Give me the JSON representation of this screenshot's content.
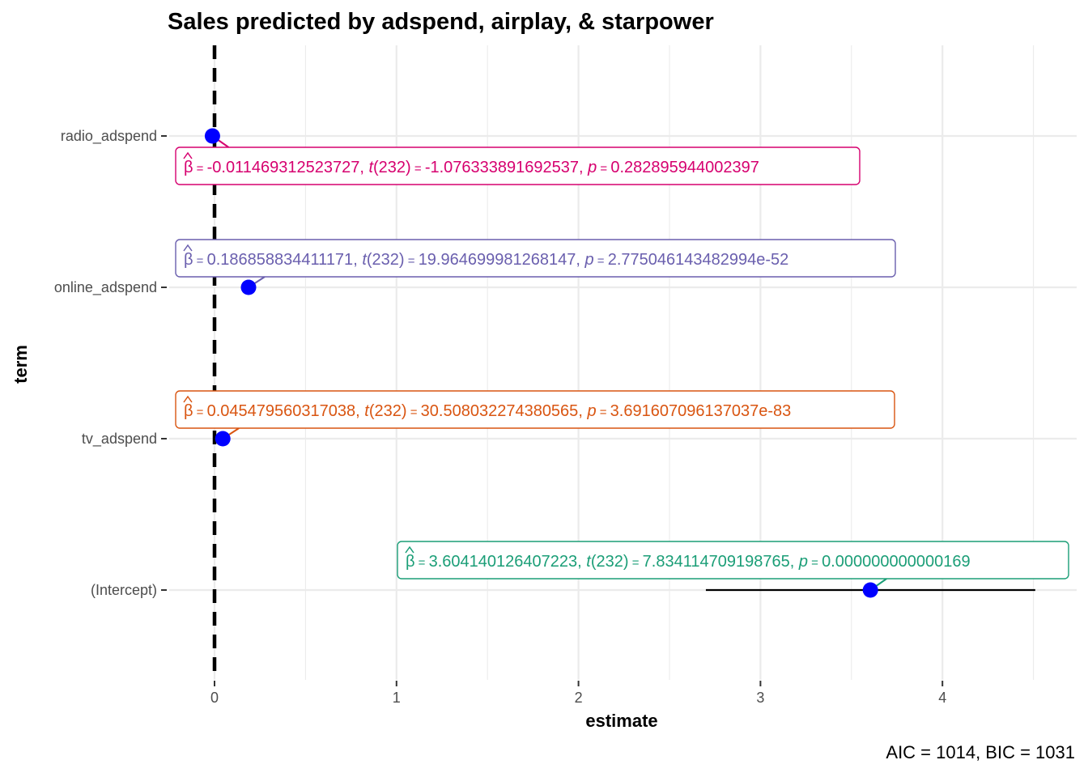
{
  "chart_data": {
    "type": "scatter",
    "title": "Sales predicted by adspend, airplay, & starpower",
    "xlabel": "estimate",
    "ylabel": "term",
    "xlim": [
      -0.2,
      4.76
    ],
    "x_ticks": [
      0,
      1,
      2,
      3,
      4
    ],
    "x_tick_labels": [
      "0",
      "1",
      "2",
      "3",
      "4"
    ],
    "reference_line_x": 0,
    "grid": true,
    "point_color": "#0000ff",
    "caption": "AIC = 1014, BIC = 1031",
    "terms": [
      {
        "term": "radio_adspend",
        "estimate": -0.011469312523727,
        "ci": [
          -0.032,
          0.009
        ],
        "label": {
          "beta": "-0.011469312523727",
          "t": "-1.076333891692537",
          "p": "0.282895944002397",
          "color": "#d6006f"
        }
      },
      {
        "term": "online_adspend",
        "estimate": 0.186858834411171,
        "ci": [
          0.168,
          0.205
        ],
        "label": {
          "beta": "0.186858834411171",
          "t": "19.964699981268147",
          "p": "2.775046143482994e-52",
          "color": "#6a5fae"
        }
      },
      {
        "term": "tv_adspend",
        "estimate": 0.045479560317038,
        "ci": [
          0.042,
          0.048
        ],
        "label": {
          "beta": "0.045479560317038",
          "t": "30.508032274380565",
          "p": "3.691607096137037e-83",
          "color": "#d95511"
        }
      },
      {
        "term": "(Intercept)",
        "estimate": 3.604140126407223,
        "ci": [
          2.7,
          4.51
        ],
        "label": {
          "beta": "3.604140126407223",
          "t": "7.834114709198765",
          "p": "0.000000000000169",
          "color": "#1b9e77"
        }
      }
    ],
    "label_text": {
      "beta_symbol": "β",
      "equals": " = ",
      "t_symbol": "t",
      "df": "(232)",
      "p_symbol": "p",
      "separator": ", "
    }
  }
}
